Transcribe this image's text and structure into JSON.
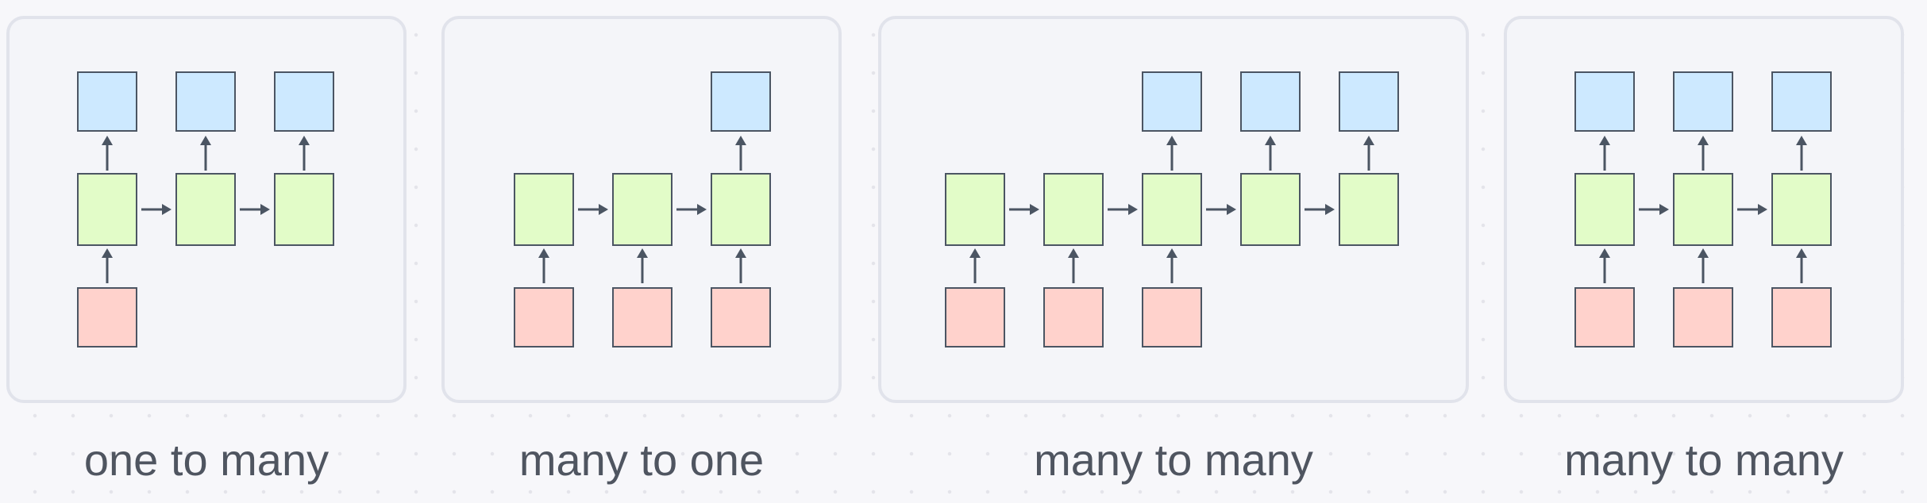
{
  "captions": {
    "one_to_many": "one to many",
    "many_to_one": "many to one",
    "many_to_many_a": "many to many",
    "many_to_many_b": "many to many"
  },
  "colors": {
    "input": "#ffd2cc",
    "hidden": "#e2fcc8",
    "output": "#cde9ff",
    "stroke": "#4b5563"
  },
  "diagrams": [
    {
      "id": "one-to-many",
      "steps": 3,
      "inputs": [
        0
      ],
      "outputs": [
        0,
        1,
        2
      ]
    },
    {
      "id": "many-to-one",
      "steps": 3,
      "inputs": [
        0,
        1,
        2
      ],
      "outputs": [
        2
      ]
    },
    {
      "id": "many-to-many-delayed",
      "steps": 5,
      "inputs": [
        0,
        1,
        2
      ],
      "outputs": [
        2,
        3,
        4
      ]
    },
    {
      "id": "many-to-many-synced",
      "steps": 3,
      "inputs": [
        0,
        1,
        2
      ],
      "outputs": [
        0,
        1,
        2
      ]
    }
  ]
}
